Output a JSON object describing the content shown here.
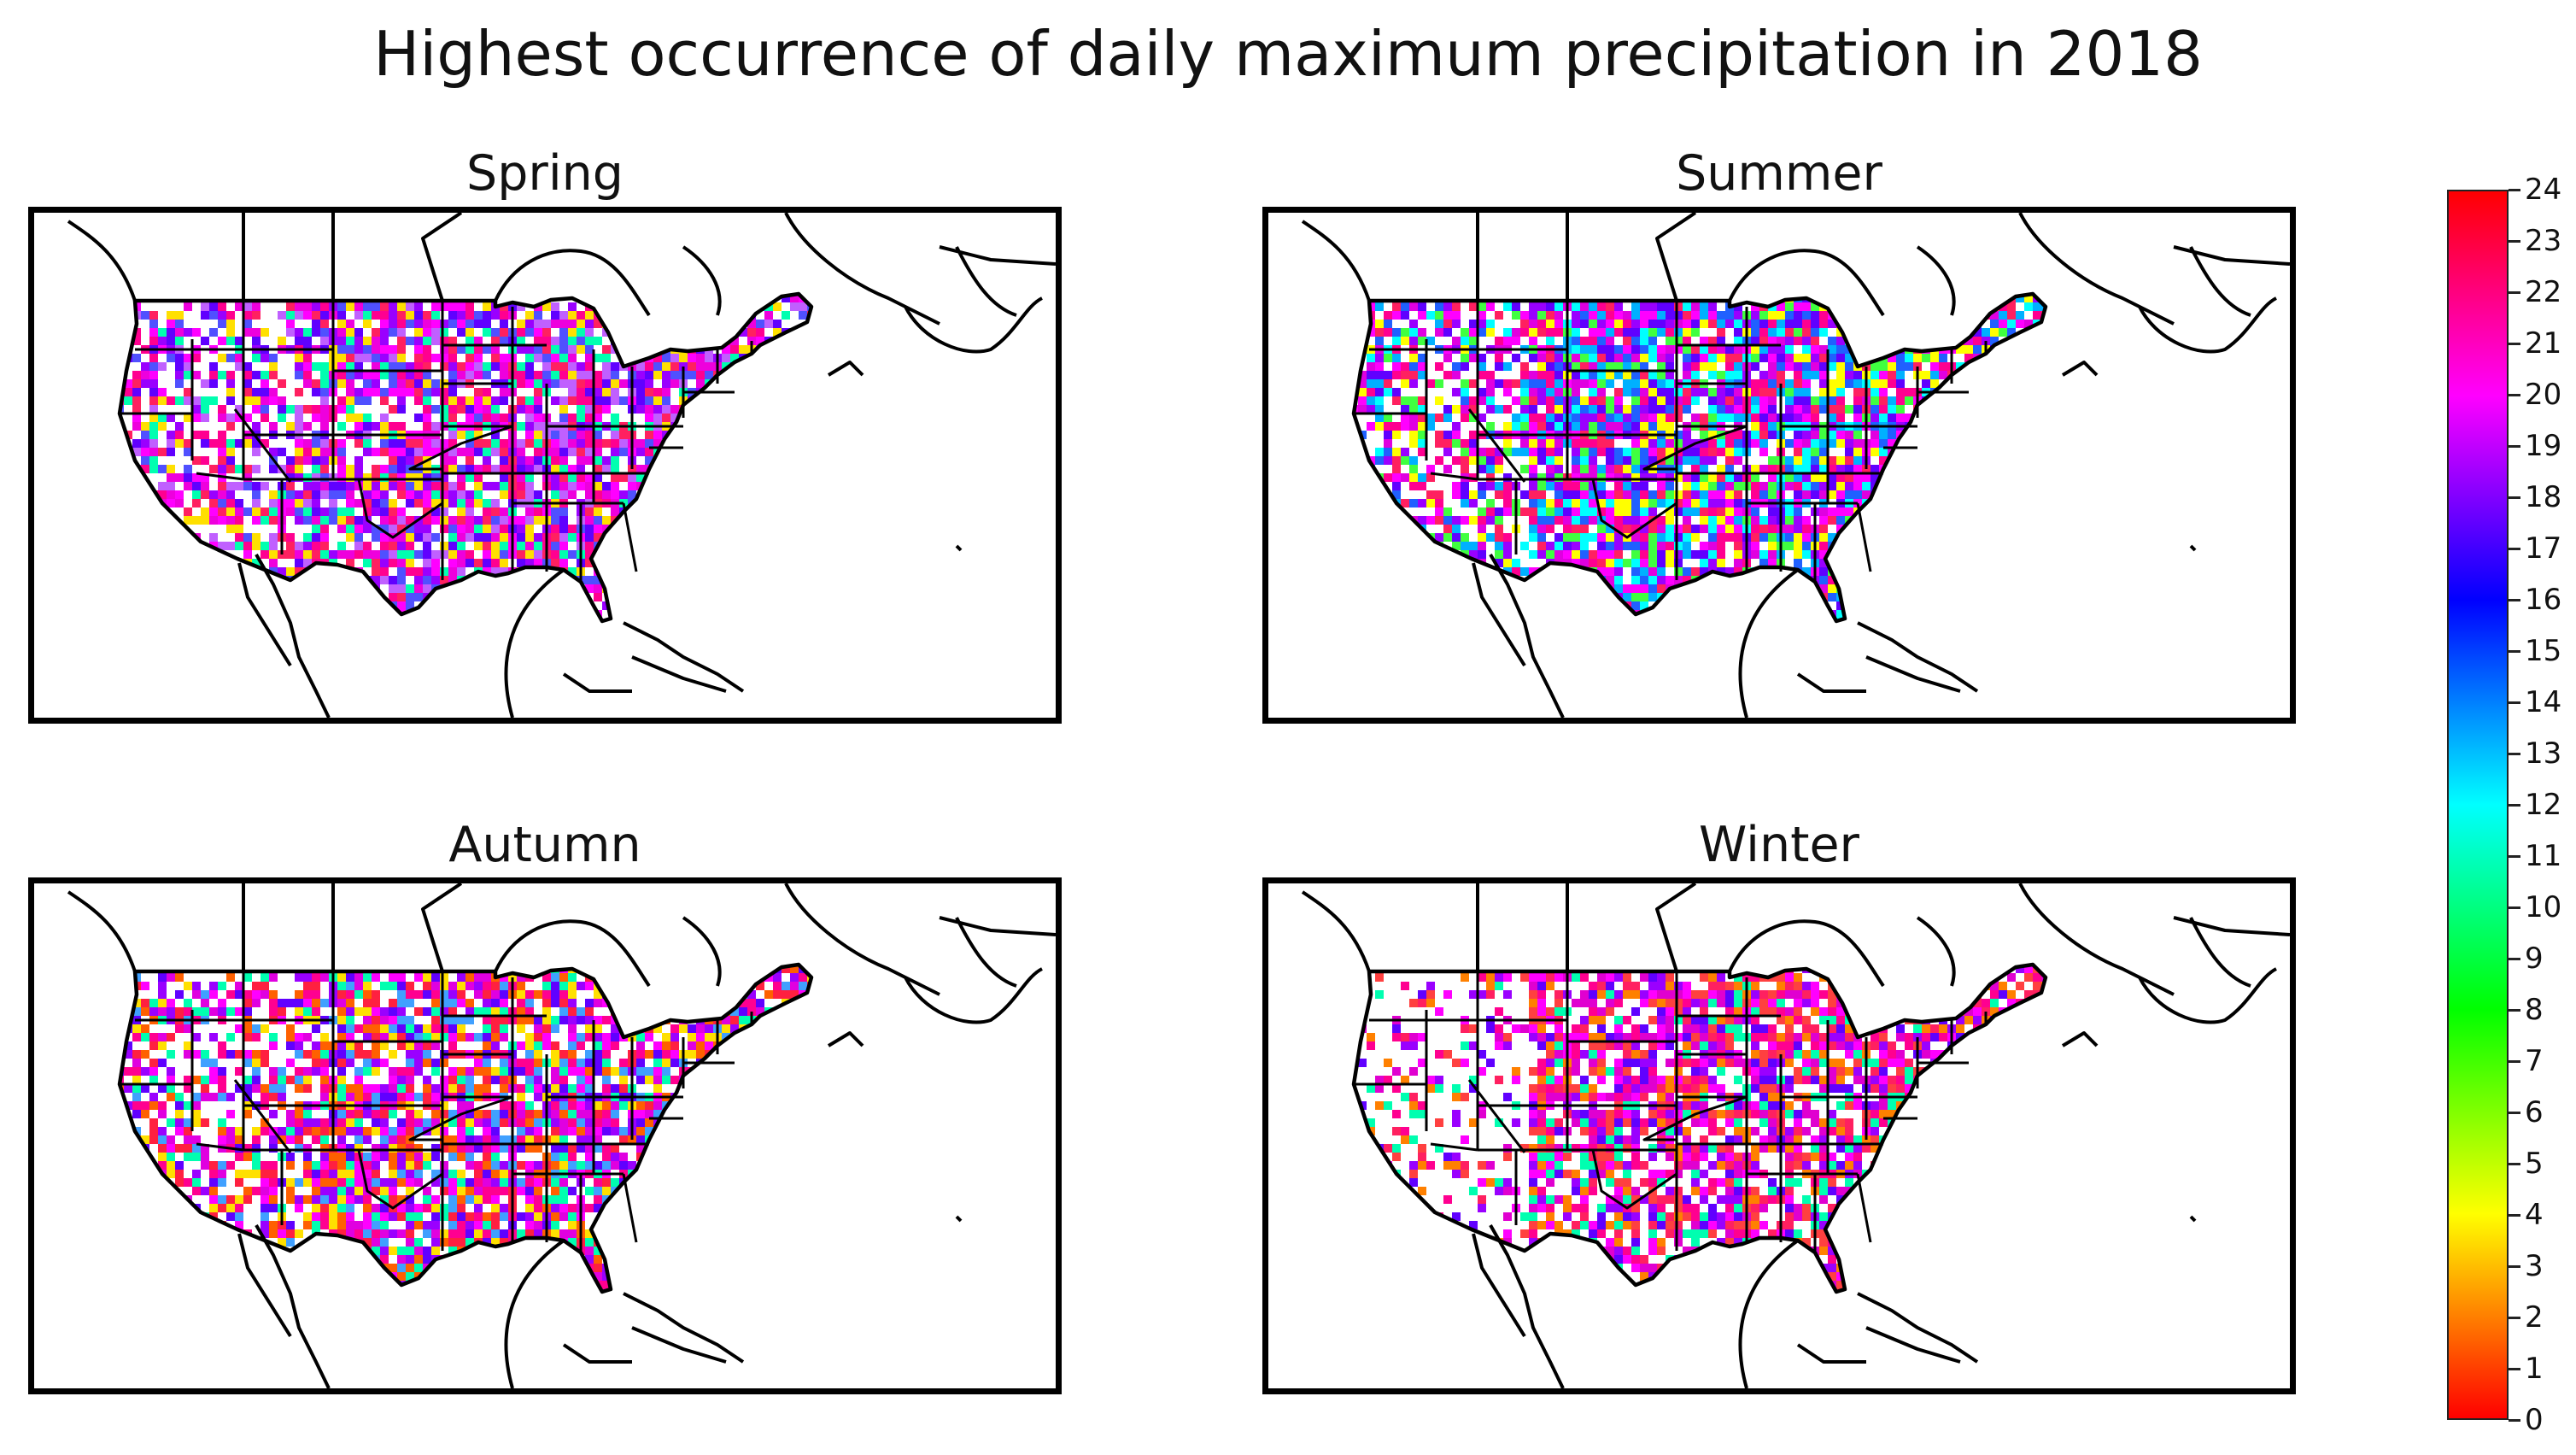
{
  "title": "Highest occurrence of daily maximum precipitation in 2018",
  "panels": [
    {
      "id": "spring",
      "title": "Spring",
      "palette": [
        "#ff00ff",
        "#ee00dd",
        "#9a00ff",
        "#ff0090",
        "#6000ff",
        "#ff2060",
        "#c060ff",
        "#ffffff",
        "#ffffff",
        "#ffe000",
        "#00ffb0",
        "#5050ff"
      ]
    },
    {
      "id": "summer",
      "title": "Summer",
      "palette": [
        "#ff00ff",
        "#9a00ff",
        "#6000ff",
        "#2060ff",
        "#00b0ff",
        "#ff0090",
        "#e000e0",
        "#ffffff",
        "#40ff40",
        "#ffff00",
        "#00ffff",
        "#ff2060"
      ]
    },
    {
      "id": "autumn",
      "title": "Autumn",
      "palette": [
        "#ff00ff",
        "#9a00ff",
        "#ff0090",
        "#6000ff",
        "#ff2040",
        "#ff6000",
        "#e000e0",
        "#ffffff",
        "#ffffff",
        "#ffe000",
        "#00ffb0",
        "#40a0ff"
      ]
    },
    {
      "id": "winter",
      "title": "Winter",
      "palette": [
        "#ff0090",
        "#ff00ff",
        "#ff2060",
        "#e000d0",
        "#9a00ff",
        "#ff4040",
        "#ffffff",
        "#ffffff",
        "#ffffff",
        "#00ffb0",
        "#ff8000",
        "#6000ff"
      ]
    }
  ],
  "colorbar": {
    "min": 0,
    "max": 24,
    "ticks": [
      "0",
      "1",
      "2",
      "3",
      "4",
      "5",
      "6",
      "7",
      "8",
      "9",
      "10",
      "11",
      "12",
      "13",
      "14",
      "15",
      "16",
      "17",
      "18",
      "19",
      "20",
      "21",
      "22",
      "23",
      "24"
    ],
    "colors": [
      "#ff0000",
      "#ff8000",
      "#ffff00",
      "#80ff00",
      "#00ff00",
      "#00ff80",
      "#00ffff",
      "#0080ff",
      "#0000ff",
      "#8000ff",
      "#ff00ff",
      "#ff0080",
      "#ff0000"
    ]
  }
}
